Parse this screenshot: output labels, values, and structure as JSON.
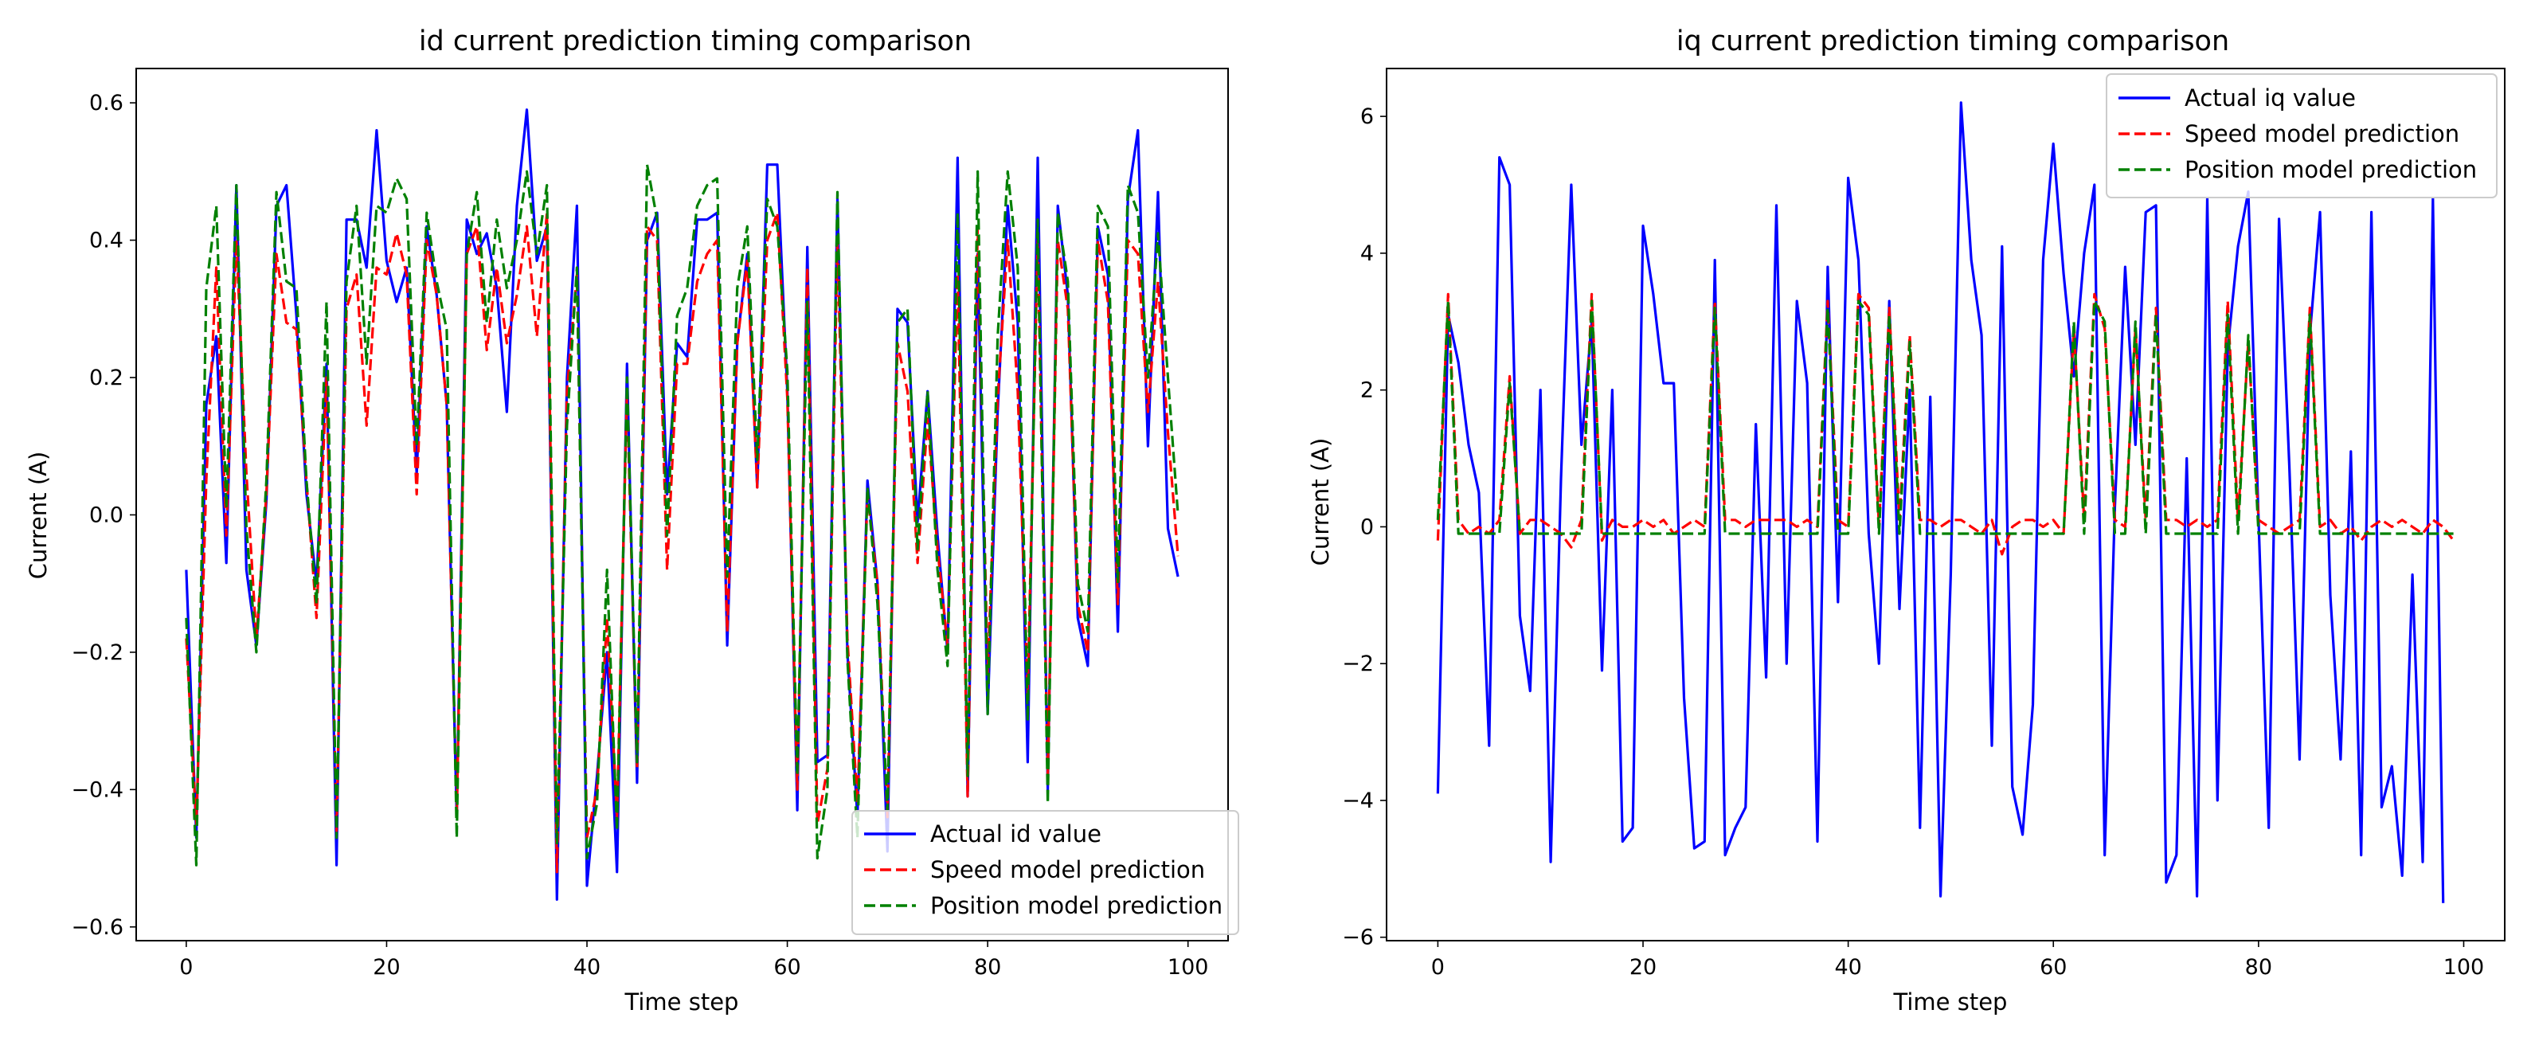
{
  "chart_data": [
    {
      "type": "line",
      "title": "id current prediction timing comparison",
      "xlabel": "Time step",
      "ylabel": "Current (A)",
      "xlim": [
        -5,
        104
      ],
      "ylim": [
        -0.62,
        0.65
      ],
      "xticks": [
        0,
        20,
        40,
        60,
        80,
        100
      ],
      "xtick_labels": [
        "0",
        "20",
        "40",
        "60",
        "80",
        "100"
      ],
      "yticks": [
        -0.6,
        -0.4,
        -0.2,
        0.0,
        0.2,
        0.4,
        0.6
      ],
      "ytick_labels": [
        "−0.6",
        "−0.4",
        "−0.2",
        "0.0",
        "0.2",
        "0.4",
        "0.6"
      ],
      "legend_loc": "lower-right",
      "series": [
        {
          "name": "Actual id value",
          "color": "#0000ff",
          "dash": "solid",
          "values": [
            -0.08,
            -0.47,
            0.16,
            0.26,
            -0.07,
            0.48,
            -0.08,
            -0.19,
            0.02,
            0.45,
            0.48,
            0.29,
            0.03,
            -0.1,
            0.22,
            -0.51,
            0.43,
            0.43,
            0.36,
            0.56,
            0.37,
            0.31,
            0.36,
            0.06,
            0.42,
            0.32,
            0.16,
            -0.44,
            0.43,
            0.38,
            0.41,
            0.33,
            0.15,
            0.45,
            0.59,
            0.37,
            0.42,
            -0.56,
            0.2,
            0.45,
            -0.54,
            -0.38,
            -0.2,
            -0.52,
            0.22,
            -0.39,
            0.4,
            0.44,
            0.03,
            0.25,
            0.23,
            0.43,
            0.43,
            0.44,
            -0.19,
            0.25,
            0.38,
            0.04,
            0.51,
            0.51,
            0.18,
            -0.43,
            0.39,
            -0.36,
            -0.35,
            0.46,
            -0.2,
            -0.44,
            0.05,
            -0.1,
            -0.49,
            0.3,
            0.28,
            -0.01,
            0.18,
            -0.03,
            -0.2,
            0.52,
            -0.41,
            0.38,
            -0.29,
            0.15,
            0.45,
            0.28,
            -0.36,
            0.52,
            -0.4,
            0.45,
            0.32,
            -0.15,
            -0.22,
            0.42,
            0.35,
            -0.17,
            0.46,
            0.56,
            0.1,
            0.47,
            -0.02,
            -0.09
          ]
        },
        {
          "name": "Speed model prediction",
          "color": "#ff0000",
          "dash": "dashed",
          "values": [
            -0.18,
            -0.45,
            0.05,
            0.36,
            -0.03,
            0.4,
            0.06,
            -0.18,
            0.03,
            0.38,
            0.28,
            0.27,
            0.05,
            -0.15,
            0.2,
            -0.46,
            0.3,
            0.35,
            0.13,
            0.36,
            0.35,
            0.41,
            0.35,
            0.03,
            0.4,
            0.32,
            0.16,
            -0.44,
            0.38,
            0.42,
            0.24,
            0.36,
            0.25,
            0.32,
            0.42,
            0.26,
            0.44,
            -0.52,
            0.18,
            0.35,
            -0.47,
            -0.4,
            -0.15,
            -0.44,
            0.18,
            -0.37,
            0.42,
            0.4,
            -0.08,
            0.22,
            0.22,
            0.34,
            0.38,
            0.4,
            -0.17,
            0.25,
            0.37,
            0.04,
            0.4,
            0.44,
            0.17,
            -0.4,
            0.36,
            -0.45,
            -0.37,
            0.4,
            -0.18,
            -0.42,
            0.03,
            -0.1,
            -0.44,
            0.25,
            0.18,
            -0.07,
            0.14,
            -0.05,
            -0.19,
            0.35,
            -0.41,
            0.42,
            -0.23,
            0.17,
            0.4,
            0.18,
            -0.26,
            0.4,
            -0.38,
            0.4,
            0.3,
            -0.13,
            -0.2,
            0.4,
            0.31,
            -0.13,
            0.4,
            0.38,
            0.15,
            0.34,
            0.12,
            -0.06
          ]
        },
        {
          "name": "Position model prediction",
          "color": "#008000",
          "dash": "dashed",
          "values": [
            -0.15,
            -0.51,
            0.33,
            0.45,
            0.01,
            0.48,
            -0.02,
            -0.2,
            0.05,
            0.47,
            0.34,
            0.33,
            0.05,
            -0.13,
            0.31,
            -0.47,
            0.34,
            0.45,
            0.22,
            0.45,
            0.44,
            0.49,
            0.46,
            0.1,
            0.44,
            0.34,
            0.27,
            -0.47,
            0.38,
            0.47,
            0.28,
            0.43,
            0.33,
            0.4,
            0.5,
            0.38,
            0.48,
            -0.48,
            0.13,
            0.36,
            -0.5,
            -0.42,
            -0.08,
            -0.46,
            0.2,
            -0.36,
            0.51,
            0.43,
            -0.03,
            0.29,
            0.33,
            0.45,
            0.48,
            0.49,
            -0.09,
            0.33,
            0.42,
            0.08,
            0.46,
            0.42,
            0.21,
            -0.38,
            0.31,
            -0.5,
            -0.4,
            0.47,
            -0.21,
            -0.47,
            0.04,
            -0.13,
            -0.43,
            0.28,
            0.3,
            -0.05,
            0.18,
            -0.08,
            -0.22,
            0.44,
            -0.38,
            0.5,
            -0.29,
            0.26,
            0.5,
            0.36,
            -0.3,
            0.43,
            -0.42,
            0.44,
            0.34,
            -0.1,
            -0.17,
            0.45,
            0.42,
            -0.1,
            0.48,
            0.44,
            0.2,
            0.41,
            0.2,
            0.0
          ]
        }
      ]
    },
    {
      "type": "line",
      "title": "iq current prediction timing comparison",
      "xlabel": "Time step",
      "ylabel": "Current (A)",
      "xlim": [
        -5,
        104
      ],
      "ylim": [
        -6.05,
        6.7
      ],
      "xticks": [
        0,
        20,
        40,
        60,
        80,
        100
      ],
      "xtick_labels": [
        "0",
        "20",
        "40",
        "60",
        "80",
        "100"
      ],
      "yticks": [
        -6,
        -4,
        -2,
        0,
        2,
        4,
        6
      ],
      "ytick_labels": [
        "−6",
        "−4",
        "−2",
        "0",
        "2",
        "4",
        "6"
      ],
      "legend_loc": "upper-right",
      "series": [
        {
          "name": "Actual iq value",
          "color": "#0000ff",
          "dash": "solid",
          "values": [
            -3.9,
            3.1,
            2.4,
            1.2,
            0.5,
            -3.2,
            5.4,
            5.0,
            -1.3,
            -2.4,
            2.0,
            -4.9,
            0.7,
            5.0,
            1.2,
            3.0,
            -2.1,
            2.0,
            -4.6,
            -4.4,
            4.4,
            3.4,
            2.1,
            2.1,
            -2.5,
            -4.7,
            -4.6,
            3.9,
            -4.8,
            -4.4,
            -4.1,
            1.5,
            -2.2,
            4.7,
            -2.0,
            3.3,
            2.1,
            -4.6,
            3.8,
            -1.1,
            5.1,
            3.9,
            -0.1,
            -2.0,
            3.3,
            -1.2,
            2.0,
            -4.4,
            1.9,
            -5.4,
            -0.7,
            6.2,
            3.9,
            2.8,
            -3.2,
            4.1,
            -3.8,
            -4.5,
            -2.6,
            3.9,
            5.6,
            3.7,
            2.2,
            4.0,
            5.0,
            -4.8,
            0.3,
            3.8,
            1.2,
            4.6,
            4.7,
            -5.2,
            -4.8,
            1.0,
            -5.4,
            4.8,
            -4.0,
            2.6,
            4.1,
            4.9,
            0.1,
            -4.4,
            4.5,
            0.9,
            -3.4,
            2.8,
            4.6,
            -1.0,
            -3.4,
            1.1,
            -4.8,
            4.6,
            -4.1,
            -3.5,
            -5.1,
            -0.7,
            -4.9,
            4.8,
            -5.5
          ]
        },
        {
          "name": "Speed model prediction",
          "color": "#ff0000",
          "dash": "dashed",
          "values": [
            -0.2,
            3.4,
            0.1,
            -0.1,
            0.0,
            -0.1,
            0.1,
            2.2,
            -0.1,
            0.1,
            0.1,
            0.0,
            -0.1,
            -0.3,
            0.1,
            3.4,
            -0.2,
            0.1,
            0.0,
            0.0,
            0.1,
            0.0,
            0.1,
            -0.1,
            0.0,
            0.1,
            0.0,
            3.3,
            0.1,
            0.1,
            0.0,
            0.1,
            0.1,
            0.1,
            0.1,
            0.0,
            0.1,
            0.0,
            3.3,
            0.1,
            0.0,
            3.4,
            3.2,
            0.0,
            3.2,
            0.1,
            2.8,
            0.1,
            0.1,
            0.0,
            0.1,
            0.1,
            0.0,
            -0.1,
            0.1,
            -0.4,
            0.0,
            0.1,
            0.1,
            0.0,
            0.1,
            -0.1,
            2.9,
            0.1,
            3.4,
            2.9,
            0.1,
            0.0,
            2.9,
            0.1,
            3.2,
            0.1,
            0.1,
            0.0,
            0.1,
            0.0,
            0.1,
            3.3,
            0.1,
            2.7,
            0.1,
            0.0,
            -0.1,
            0.0,
            0.1,
            3.2,
            0.0,
            0.1,
            -0.1,
            0.0,
            -0.2,
            0.0,
            0.1,
            0.0,
            0.1,
            0.0,
            -0.1,
            0.1,
            0.0,
            -0.2
          ]
        },
        {
          "name": "Position model prediction",
          "color": "#008000",
          "dash": "dashed",
          "values": [
            0.1,
            3.3,
            -0.1,
            -0.1,
            -0.1,
            -0.1,
            -0.1,
            2.1,
            -0.1,
            -0.1,
            -0.1,
            -0.1,
            -0.1,
            -0.1,
            -0.1,
            3.3,
            -0.1,
            -0.1,
            -0.1,
            -0.1,
            -0.1,
            -0.1,
            -0.1,
            -0.1,
            -0.1,
            -0.1,
            -0.1,
            3.2,
            -0.1,
            -0.1,
            -0.1,
            -0.1,
            -0.1,
            -0.1,
            -0.1,
            -0.1,
            -0.1,
            -0.1,
            3.2,
            -0.1,
            -0.1,
            3.3,
            3.1,
            -0.1,
            3.1,
            -0.1,
            2.7,
            -0.1,
            -0.1,
            -0.1,
            -0.1,
            -0.1,
            -0.1,
            -0.1,
            -0.1,
            -0.1,
            -0.1,
            -0.1,
            -0.1,
            -0.1,
            -0.1,
            -0.1,
            3.0,
            -0.1,
            3.3,
            3.0,
            -0.1,
            -0.1,
            3.0,
            -0.1,
            3.1,
            -0.1,
            -0.1,
            -0.1,
            -0.1,
            -0.1,
            -0.1,
            3.1,
            -0.1,
            2.8,
            -0.1,
            -0.1,
            -0.1,
            -0.1,
            -0.1,
            3.1,
            -0.1,
            -0.1,
            -0.1,
            -0.1,
            -0.1,
            -0.1,
            -0.1,
            -0.1,
            -0.1,
            -0.1,
            -0.1,
            -0.1,
            -0.1,
            -0.1
          ]
        }
      ]
    }
  ]
}
